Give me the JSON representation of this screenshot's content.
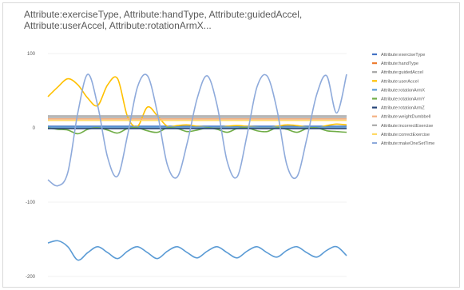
{
  "chart_data": {
    "type": "line",
    "title": "Attribute:exerciseType, Attribute:handType, Attribute:guidedAccel, Attribute:userAccel, Attribute:rotationArmX...",
    "xlabel": "",
    "ylabel": "",
    "ylim": [
      -200,
      100
    ],
    "yticks": [
      100,
      0,
      -100,
      -200
    ],
    "grid": true,
    "legend": "right",
    "series": [
      {
        "name": "Attribute:exerciseType",
        "color": "#4472c4",
        "values": [
          2,
          2,
          2,
          2,
          2,
          2,
          2,
          2,
          2,
          2,
          2,
          2,
          2,
          2,
          2,
          2,
          2,
          2,
          2,
          2,
          2,
          2,
          2,
          2,
          2,
          2,
          2,
          2,
          2,
          2,
          2
        ]
      },
      {
        "name": "Attribute:handType",
        "color": "#ed7d31",
        "values": [
          10,
          10,
          10,
          10,
          10,
          10,
          10,
          10,
          10,
          10,
          10,
          10,
          10,
          10,
          10,
          10,
          10,
          10,
          10,
          10,
          10,
          10,
          10,
          10,
          10,
          10,
          10,
          10,
          10,
          10,
          10
        ]
      },
      {
        "name": "Attribute:guidedAccel",
        "color": "#a5a5a5",
        "values": [
          14,
          14,
          14,
          14,
          14,
          14,
          14,
          14,
          14,
          14,
          14,
          14,
          14,
          14,
          14,
          14,
          14,
          14,
          14,
          14,
          14,
          14,
          14,
          14,
          14,
          14,
          14,
          14,
          14,
          14,
          14
        ]
      },
      {
        "name": "Attribute:userAccel",
        "color": "#ffc000",
        "values": [
          42,
          55,
          66,
          58,
          40,
          30,
          58,
          66,
          15,
          2,
          28,
          16,
          2,
          3,
          4,
          2,
          1,
          0,
          2,
          3,
          2,
          1,
          0,
          2,
          4,
          3,
          1,
          0,
          3,
          5,
          4
        ]
      },
      {
        "name": "Attribute:rotationArmX",
        "color": "#5b9bd5",
        "values": [
          1,
          1,
          1,
          1,
          1,
          1,
          1,
          1,
          1,
          1,
          1,
          1,
          1,
          1,
          1,
          1,
          1,
          1,
          1,
          1,
          1,
          1,
          1,
          1,
          1,
          1,
          1,
          1,
          1,
          1,
          1
        ]
      },
      {
        "name": "Attribute:rotationArmY",
        "color": "#70ad47",
        "values": [
          0,
          -2,
          -3,
          -8,
          -2,
          0,
          -3,
          -7,
          -1,
          0,
          -4,
          -6,
          0,
          -1,
          -5,
          -3,
          0,
          -2,
          -6,
          -1,
          0,
          -4,
          -5,
          0,
          -2,
          -6,
          -1,
          0,
          -4,
          -5,
          -6
        ]
      },
      {
        "name": "Attribute:rotationArmZ",
        "color": "#264478",
        "values": [
          -1,
          -1,
          -1,
          -1,
          -1,
          -1,
          -1,
          -1,
          -1,
          -1,
          -1,
          -1,
          -1,
          -1,
          -1,
          -1,
          -1,
          -1,
          -1,
          -1,
          -1,
          -1,
          -1,
          -1,
          -1,
          -1,
          -1,
          -1,
          -1,
          -1,
          -1
        ]
      },
      {
        "name": "Attribute:weightDumbbell",
        "color": "#f4b183",
        "values": [
          12,
          12,
          12,
          12,
          12,
          12,
          12,
          12,
          12,
          12,
          12,
          12,
          12,
          12,
          12,
          12,
          12,
          12,
          12,
          12,
          12,
          12,
          12,
          12,
          12,
          12,
          12,
          12,
          12,
          12,
          12
        ]
      },
      {
        "name": "Attribute:incorrectExercise",
        "color": "#a9a9a9",
        "values": [
          16,
          16,
          16,
          16,
          16,
          16,
          16,
          16,
          16,
          16,
          16,
          16,
          16,
          16,
          16,
          16,
          16,
          16,
          16,
          16,
          16,
          16,
          16,
          16,
          16,
          16,
          16,
          16,
          16,
          16,
          16
        ]
      },
      {
        "name": "Attribute:correctExercise",
        "color": "#ffd966",
        "values": [
          10,
          10,
          10,
          10,
          10,
          10,
          10,
          10,
          10,
          10,
          10,
          10,
          10,
          10,
          10,
          10,
          10,
          10,
          10,
          10,
          10,
          10,
          10,
          10,
          10,
          10,
          10,
          10,
          10,
          10,
          10
        ]
      },
      {
        "name": "Attribute:makeOneSetTime",
        "color": "#8eaadb",
        "values": [
          -70,
          -78,
          -60,
          20,
          72,
          30,
          -40,
          -65,
          -10,
          55,
          70,
          20,
          -50,
          -66,
          -20,
          40,
          70,
          30,
          -45,
          -66,
          -10,
          55,
          70,
          25,
          -50,
          -66,
          -15,
          45,
          70,
          20,
          72
        ]
      },
      {
        "name": "",
        "color": "#5b9bd5",
        "values": [
          -155,
          -152,
          -160,
          -178,
          -168,
          -160,
          -168,
          -176,
          -166,
          -160,
          -168,
          -176,
          -166,
          -160,
          -168,
          -175,
          -166,
          -160,
          -168,
          -175,
          -166,
          -160,
          -168,
          -174,
          -165,
          -160,
          -168,
          -174,
          -165,
          -160,
          -172
        ]
      }
    ]
  }
}
